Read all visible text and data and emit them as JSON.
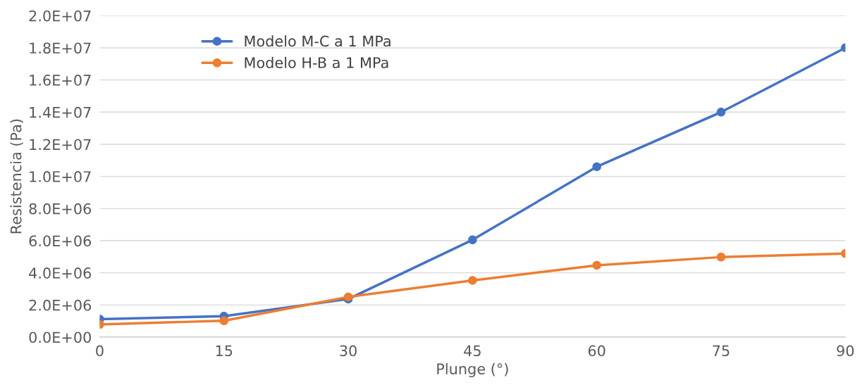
{
  "chart_data": {
    "type": "line",
    "xlabel": "Plunge (°)",
    "ylabel": "Resistencia (Pa)",
    "x": [
      0,
      15,
      30,
      45,
      60,
      75,
      90
    ],
    "series": [
      {
        "name": "Modelo M-C a 1 MPa",
        "color": "#4472c4",
        "values": [
          1120000,
          1300000,
          2370000,
          6050000,
          10600000,
          14000000,
          18000000
        ]
      },
      {
        "name": "Modelo H-B a 1 MPa",
        "color": "#ed7d31",
        "values": [
          790000,
          1020000,
          2500000,
          3530000,
          4470000,
          4980000,
          5200000
        ]
      }
    ],
    "xlim": [
      0,
      90
    ],
    "xticks": [
      0,
      15,
      30,
      45,
      60,
      75,
      90
    ],
    "ylim": [
      0,
      20000000
    ],
    "yticks": [
      {
        "value": 0,
        "label": "0.0E+00"
      },
      {
        "value": 2000000,
        "label": "2.0E+06"
      },
      {
        "value": 4000000,
        "label": "4.0E+06"
      },
      {
        "value": 6000000,
        "label": "6.0E+06"
      },
      {
        "value": 8000000,
        "label": "8.0E+06"
      },
      {
        "value": 10000000,
        "label": "1.0E+07"
      },
      {
        "value": 12000000,
        "label": "1.2E+07"
      },
      {
        "value": 14000000,
        "label": "1.4E+07"
      },
      {
        "value": 16000000,
        "label": "1.6E+07"
      },
      {
        "value": 18000000,
        "label": "1.8E+07"
      },
      {
        "value": 20000000,
        "label": "2.0E+07"
      }
    ],
    "grid": "y",
    "legend": "top left",
    "marker": "circle",
    "line_style": "solid"
  }
}
